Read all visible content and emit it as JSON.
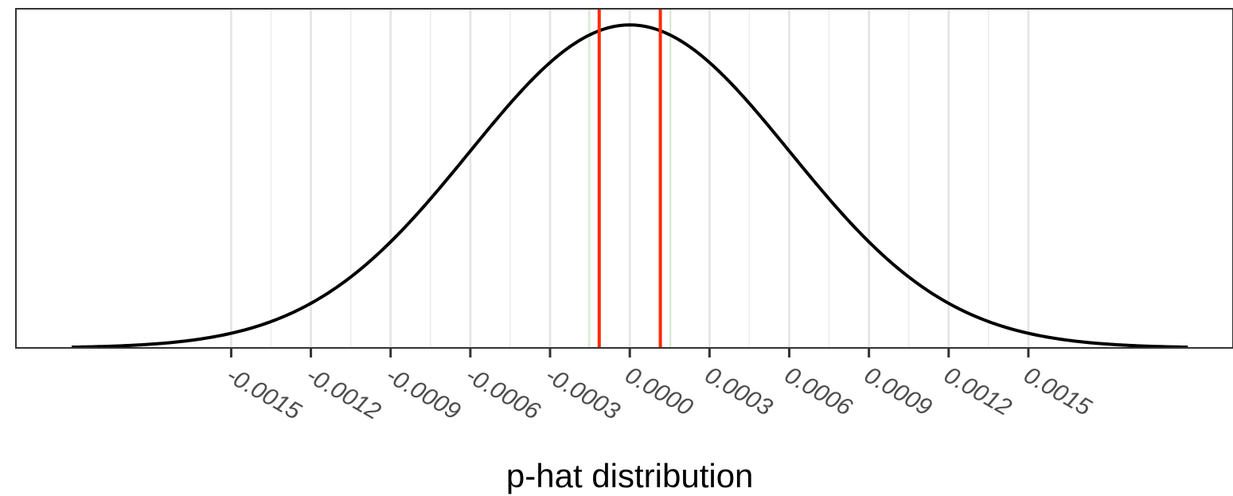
{
  "chart_data": {
    "type": "line",
    "title": "",
    "xlabel": "p-hat distribution",
    "ylabel": "",
    "x_ticks": [
      -0.0015,
      -0.0012,
      -0.0009,
      -0.0006,
      -0.0003,
      0.0,
      0.0003,
      0.0006,
      0.0009,
      0.0012,
      0.0015
    ],
    "x_tick_labels": [
      "-0.0015",
      "-0.0012",
      "-0.0009",
      "-0.0006",
      "-0.0003",
      "0.0000",
      "0.0003",
      "0.0006",
      "0.0009",
      "0.0012",
      "0.0015"
    ],
    "xlim": [
      -0.00231,
      0.00227
    ],
    "ylim": [
      0,
      1.05
    ],
    "grid": {
      "major_x": true,
      "minor_x": true,
      "horizontal": false
    },
    "series": [
      {
        "kind": "normal-density-curve",
        "mean": 0.0,
        "sd": 0.000603,
        "x_range": [
          -0.0021,
          0.0021
        ],
        "color": "#000000"
      }
    ],
    "reference_lines": [
      {
        "orientation": "vertical",
        "x": -0.000115,
        "color": "#ff2a00"
      },
      {
        "orientation": "vertical",
        "x": 0.000115,
        "color": "#ff2a00"
      }
    ],
    "faint_reference_lines": [
      {
        "orientation": "vertical",
        "x": -0.000154,
        "color": "#c8e6c0"
      },
      {
        "orientation": "vertical",
        "x": 0.000154,
        "color": "#c8e6c0"
      }
    ]
  }
}
